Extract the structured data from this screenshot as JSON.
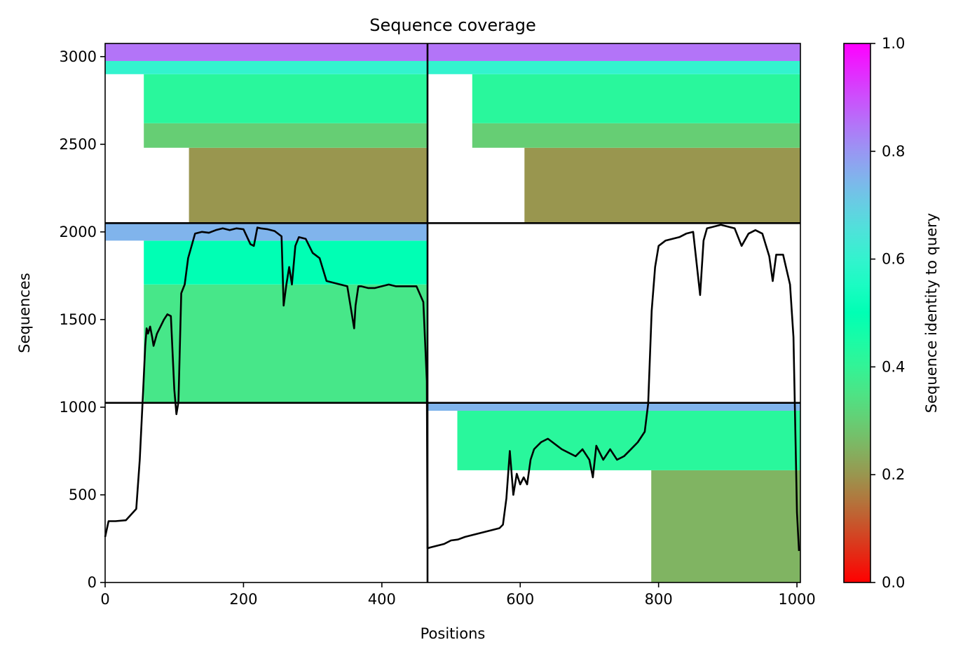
{
  "chart_data": {
    "type": "heatmap",
    "title": "Sequence coverage",
    "xlabel": "Positions",
    "ylabel": "Sequences",
    "xlim": [
      0,
      1005
    ],
    "ylim": [
      0,
      3075
    ],
    "xticks": [
      0,
      200,
      400,
      600,
      800,
      1000
    ],
    "yticks": [
      0,
      500,
      1000,
      1500,
      2000,
      2500,
      3000
    ],
    "colorbar": {
      "label": "Sequence identity to query",
      "range": [
        0,
        1
      ],
      "ticks": [
        0.0,
        0.2,
        0.4,
        0.6,
        0.8,
        1.0
      ],
      "tick_labels": [
        "0.0",
        "0.2",
        "0.4",
        "0.6",
        "0.8",
        "1.0"
      ],
      "colormap": "rainbow_r"
    },
    "chain_boundaries": {
      "x": [
        466
      ],
      "y": [
        1025,
        2050
      ]
    },
    "blocks": [
      {
        "x0": 0,
        "x1": 466,
        "y0": 2050,
        "y1": 3075,
        "coverage": "partial",
        "identity_bands": [
          [
            2050,
            2480,
            0.2
          ],
          [
            2480,
            2620,
            0.3
          ],
          [
            2620,
            2900,
            0.42
          ],
          [
            2900,
            2975,
            0.6
          ],
          [
            2975,
            3075,
            0.85
          ]
        ]
      },
      {
        "x0": 466,
        "x1": 1005,
        "y0": 2050,
        "y1": 3075,
        "coverage": "partial",
        "identity_bands": [
          [
            2050,
            2480,
            0.2
          ],
          [
            2480,
            2620,
            0.3
          ],
          [
            2620,
            2900,
            0.42
          ],
          [
            2900,
            2975,
            0.6
          ],
          [
            2975,
            3075,
            0.85
          ]
        ]
      },
      {
        "x0": 0,
        "x1": 466,
        "y0": 1025,
        "y1": 2050,
        "coverage": "full",
        "identity_bands": [
          [
            1025,
            1700,
            0.36
          ],
          [
            1700,
            1950,
            0.5
          ],
          [
            1950,
            2050,
            0.75
          ]
        ]
      },
      {
        "x0": 466,
        "x1": 1005,
        "y0": 0,
        "y1": 1025,
        "coverage": "full",
        "identity_bands": [
          [
            0,
            640,
            0.25
          ],
          [
            640,
            980,
            0.42
          ],
          [
            980,
            1025,
            0.75
          ]
        ]
      }
    ],
    "coverage_line": {
      "x": [
        0,
        5,
        15,
        30,
        45,
        50,
        55,
        58,
        60,
        62,
        65,
        68,
        70,
        75,
        80,
        85,
        90,
        95,
        100,
        103,
        106,
        110,
        115,
        120,
        130,
        140,
        150,
        160,
        170,
        180,
        190,
        200,
        210,
        215,
        220,
        225,
        235,
        245,
        255,
        258,
        262,
        266,
        270,
        275,
        280,
        290,
        300,
        310,
        320,
        330,
        340,
        350,
        360,
        362,
        366,
        370,
        380,
        390,
        400,
        410,
        420,
        430,
        440,
        450,
        460,
        465,
        466,
        470,
        480,
        490,
        500,
        510,
        520,
        530,
        540,
        550,
        560,
        570,
        575,
        580,
        585,
        590,
        595,
        600,
        605,
        610,
        615,
        620,
        625,
        630,
        640,
        650,
        660,
        670,
        680,
        690,
        700,
        705,
        710,
        720,
        730,
        740,
        750,
        760,
        770,
        780,
        785,
        790,
        795,
        800,
        810,
        820,
        830,
        840,
        850,
        860,
        865,
        870,
        880,
        890,
        900,
        910,
        920,
        930,
        940,
        950,
        960,
        965,
        970,
        980,
        990,
        995,
        1000,
        1003,
        1005
      ],
      "y": [
        260,
        350,
        350,
        355,
        420,
        700,
        1100,
        1350,
        1450,
        1420,
        1460,
        1400,
        1350,
        1420,
        1460,
        1500,
        1530,
        1520,
        1100,
        960,
        1030,
        1650,
        1700,
        1850,
        1990,
        2000,
        1995,
        2010,
        2020,
        2010,
        2020,
        2015,
        1930,
        1920,
        2025,
        2020,
        2015,
        2005,
        1975,
        1580,
        1700,
        1800,
        1700,
        1920,
        1970,
        1960,
        1880,
        1850,
        1720,
        1710,
        1700,
        1690,
        1450,
        1580,
        1690,
        1690,
        1680,
        1680,
        1690,
        1700,
        1690,
        1690,
        1690,
        1690,
        1600,
        1150,
        195,
        200,
        210,
        220,
        240,
        245,
        260,
        270,
        280,
        290,
        300,
        310,
        330,
        480,
        750,
        500,
        620,
        560,
        600,
        560,
        700,
        760,
        780,
        800,
        820,
        790,
        760,
        740,
        720,
        760,
        700,
        600,
        780,
        700,
        760,
        700,
        720,
        760,
        800,
        860,
        1020,
        1550,
        1800,
        1920,
        1950,
        1960,
        1970,
        1990,
        2000,
        1640,
        1950,
        2020,
        2030,
        2040,
        2030,
        2020,
        1920,
        1990,
        2010,
        1990,
        1860,
        1720,
        1870,
        1870,
        1700,
        1400,
        400,
        180
      ]
    }
  }
}
